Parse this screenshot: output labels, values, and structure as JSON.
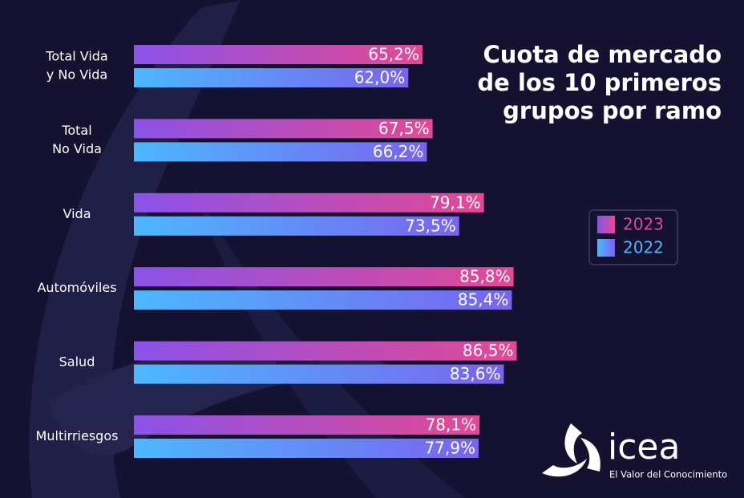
{
  "chart_data": {
    "type": "hbar",
    "title": [
      "Cuota de mercado",
      "de los 10 primeros",
      "grupos por ramo"
    ],
    "categories": [
      [
        "Total Vida",
        "y No Vida"
      ],
      [
        "Total",
        "No Vida"
      ],
      [
        "Vida"
      ],
      [
        "Automóviles"
      ],
      [
        "Salud"
      ],
      [
        "Multirriesgos"
      ]
    ],
    "series": [
      {
        "name": "2023",
        "color": "#e0479a",
        "gradient": [
          "#8a52e8",
          "#e34994"
        ],
        "values": [
          65.2,
          67.5,
          79.1,
          85.8,
          86.5,
          78.1
        ],
        "value_labels": [
          "65,2%",
          "67,5%",
          "79,1%",
          "85,8%",
          "86,5%",
          "78,1%"
        ]
      },
      {
        "name": "2022",
        "color": "#4fb6ff",
        "gradient": [
          "#4cb8ff",
          "#7a63ee"
        ],
        "values": [
          62.0,
          66.2,
          73.5,
          85.4,
          83.6,
          77.9
        ],
        "value_labels": [
          "62,0%",
          "66,2%",
          "73,5%",
          "85,4%",
          "83,6%",
          "77,9%"
        ]
      }
    ]
  },
  "logo": {
    "name": "icea",
    "tagline": "El Valor del Conocimiento"
  }
}
